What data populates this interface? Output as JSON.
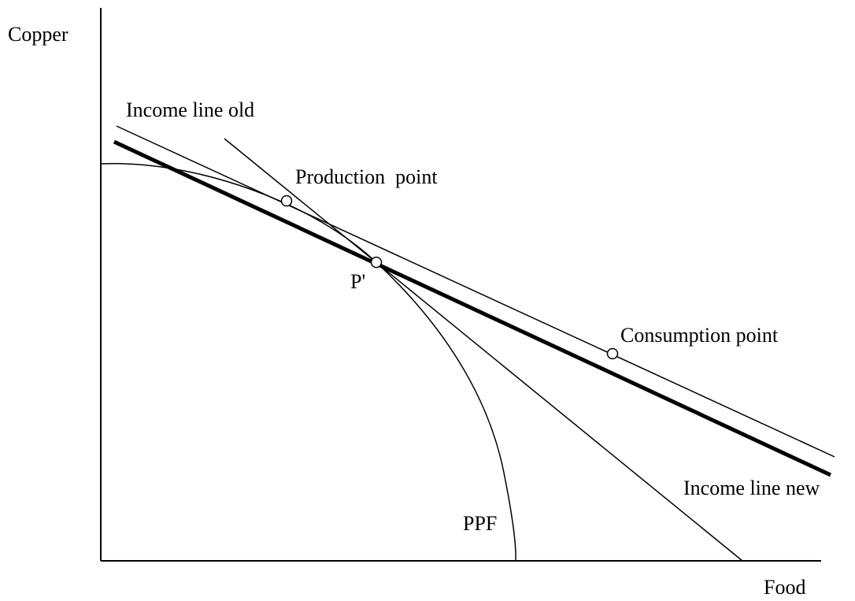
{
  "axes": {
    "y_label": "Copper",
    "x_label": "Food"
  },
  "labels": {
    "income_line_old": "Income line old",
    "production_point": "Production  point",
    "p_prime": "P'",
    "consumption_point": "Consumption point",
    "income_line_new": "Income line new",
    "ppf": "PPF"
  }
}
